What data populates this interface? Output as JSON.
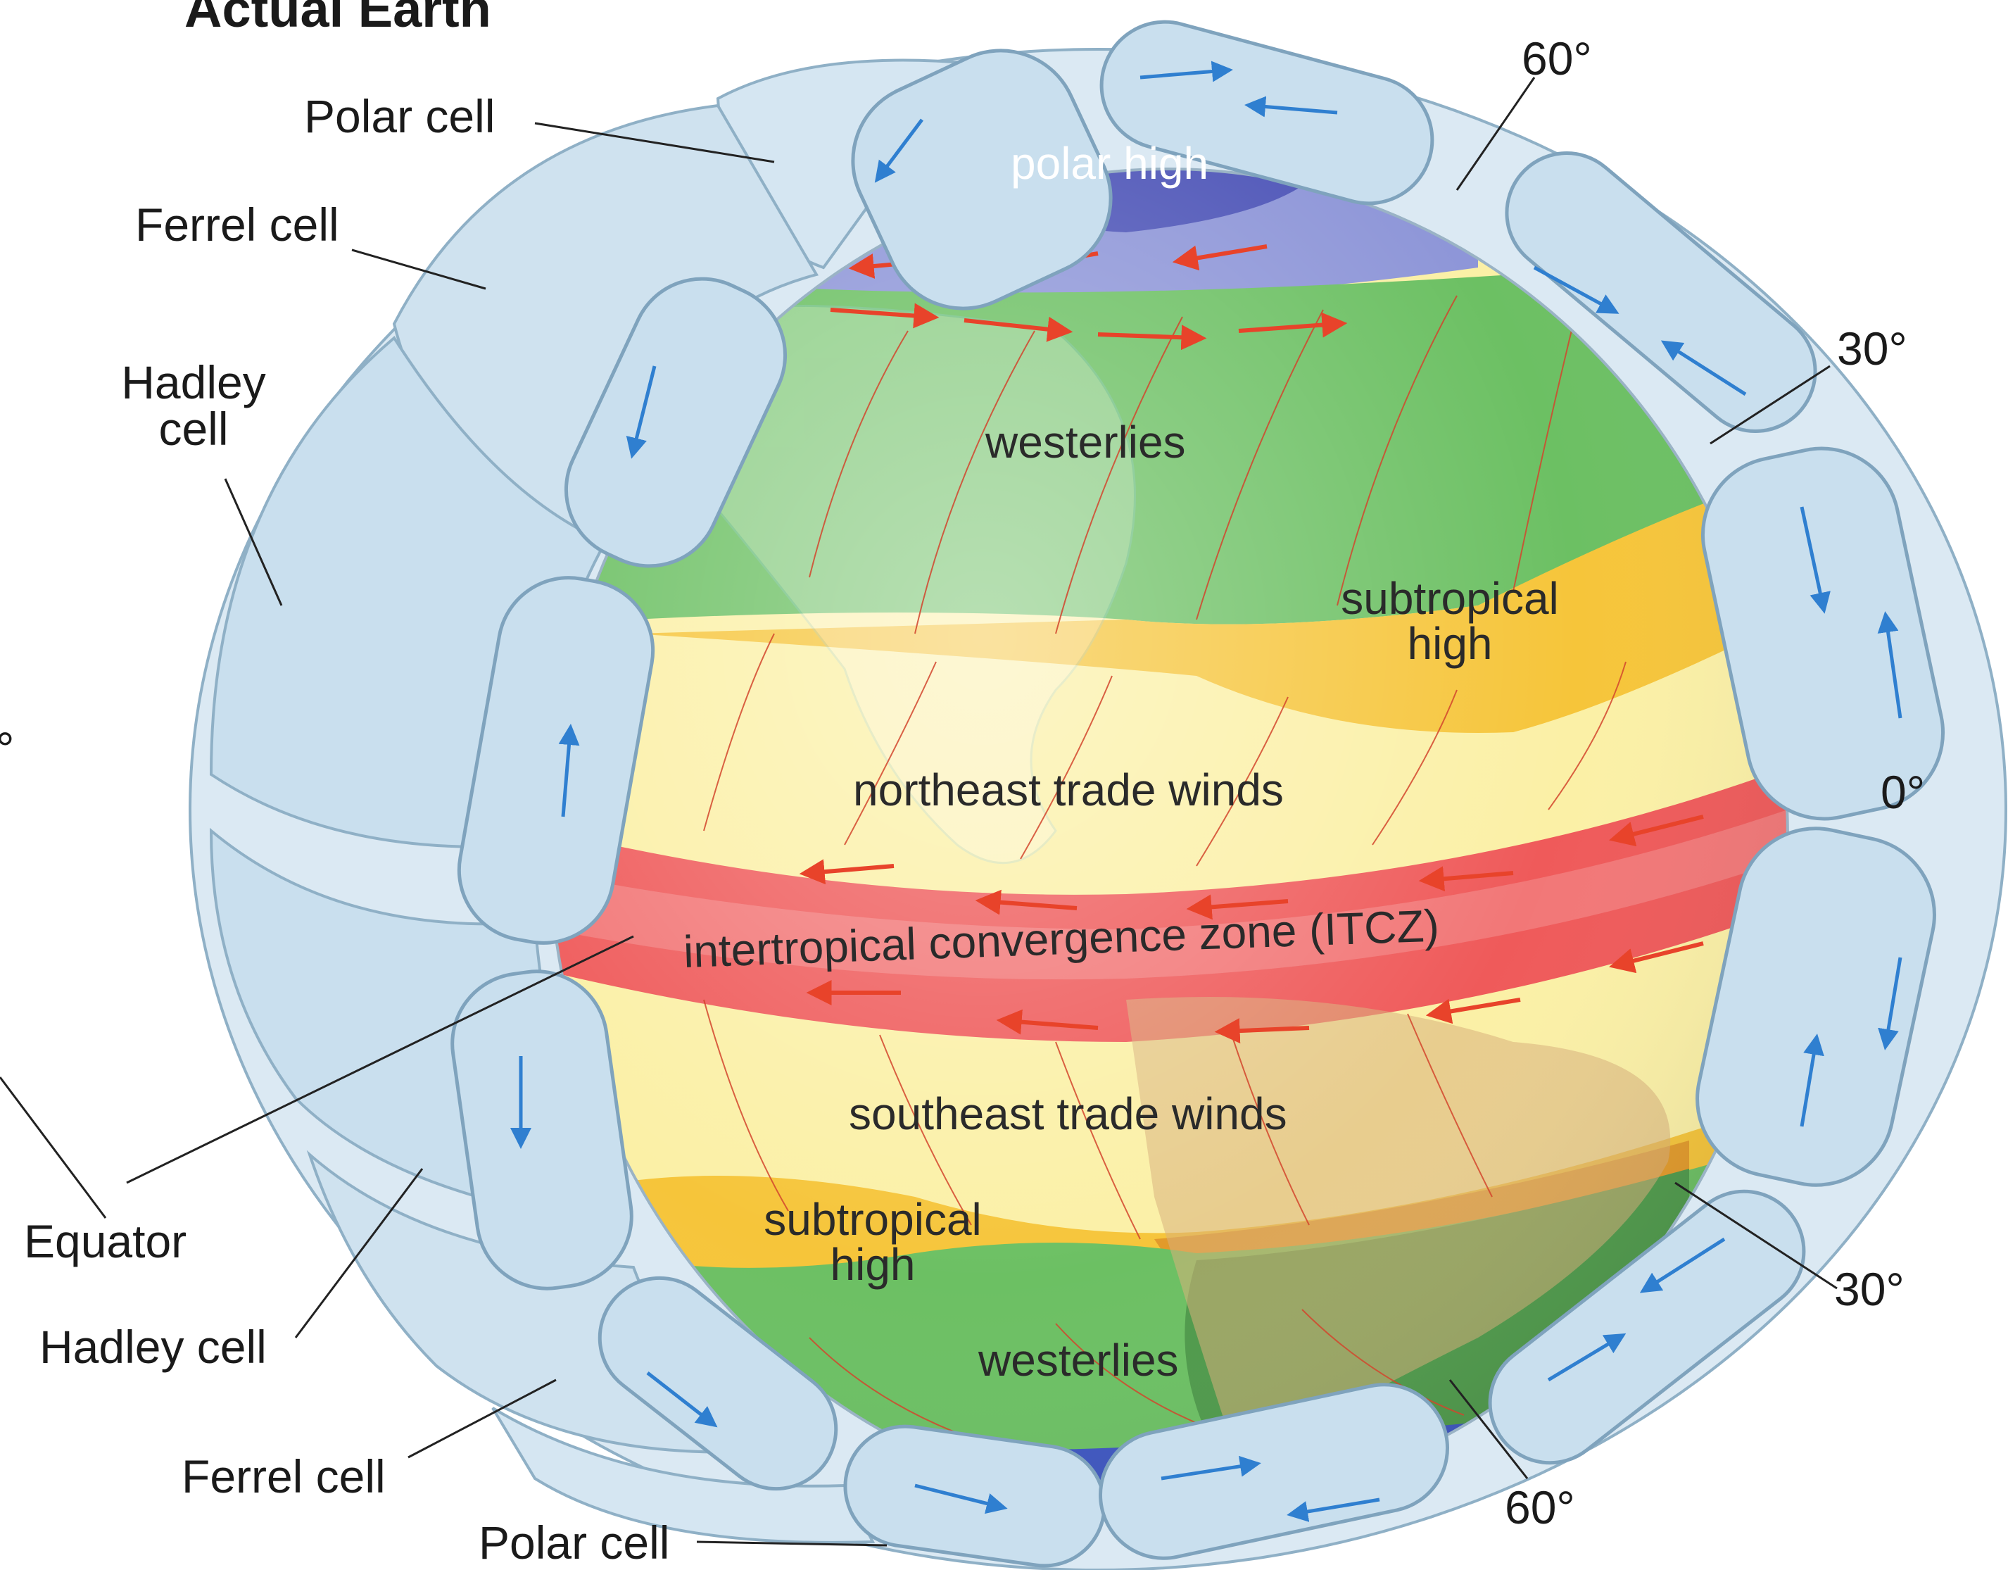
{
  "title": "Actual Earth",
  "labels_left": {
    "polar_cell_top": "Polar cell",
    "ferrel_cell_top": "Ferrel cell",
    "hadley_cell_top": "Hadley cell",
    "equator": "Equator",
    "hadley_cell_bottom": "Hadley cell",
    "ferrel_cell_bottom": "Ferrel cell",
    "polar_cell_bottom": "Polar cell",
    "partial_degree": "°"
  },
  "labels_right": {
    "lat_60_top": "60°",
    "lat_30_top": "30°",
    "lat_0": "0°",
    "lat_30_bottom": "30°",
    "lat_60_bottom": "60°"
  },
  "globe_labels": {
    "polar_high": "polar high",
    "westerlies_north": "westerlies",
    "subtropical_high_north": "subtropical high",
    "ne_trades": "northeast trade winds",
    "itcz": "intertropical convergence zone (ITCZ)",
    "se_trades": "southeast trade winds",
    "subtropical_high_south": "subtropical high",
    "westerlies_south": "westerlies"
  },
  "colors": {
    "cell_fill": "#c9dfee",
    "cell_stroke": "#7fa3bd",
    "polar_high": "#5a5fc0",
    "westerlies": "#5cb85a",
    "subtropical_high": "#f6c53a",
    "trade_winds": "#fbf0a6",
    "itcz": "#ef5a5a",
    "arrow_red": "#e8432a",
    "arrow_blue": "#2f7fd0"
  }
}
